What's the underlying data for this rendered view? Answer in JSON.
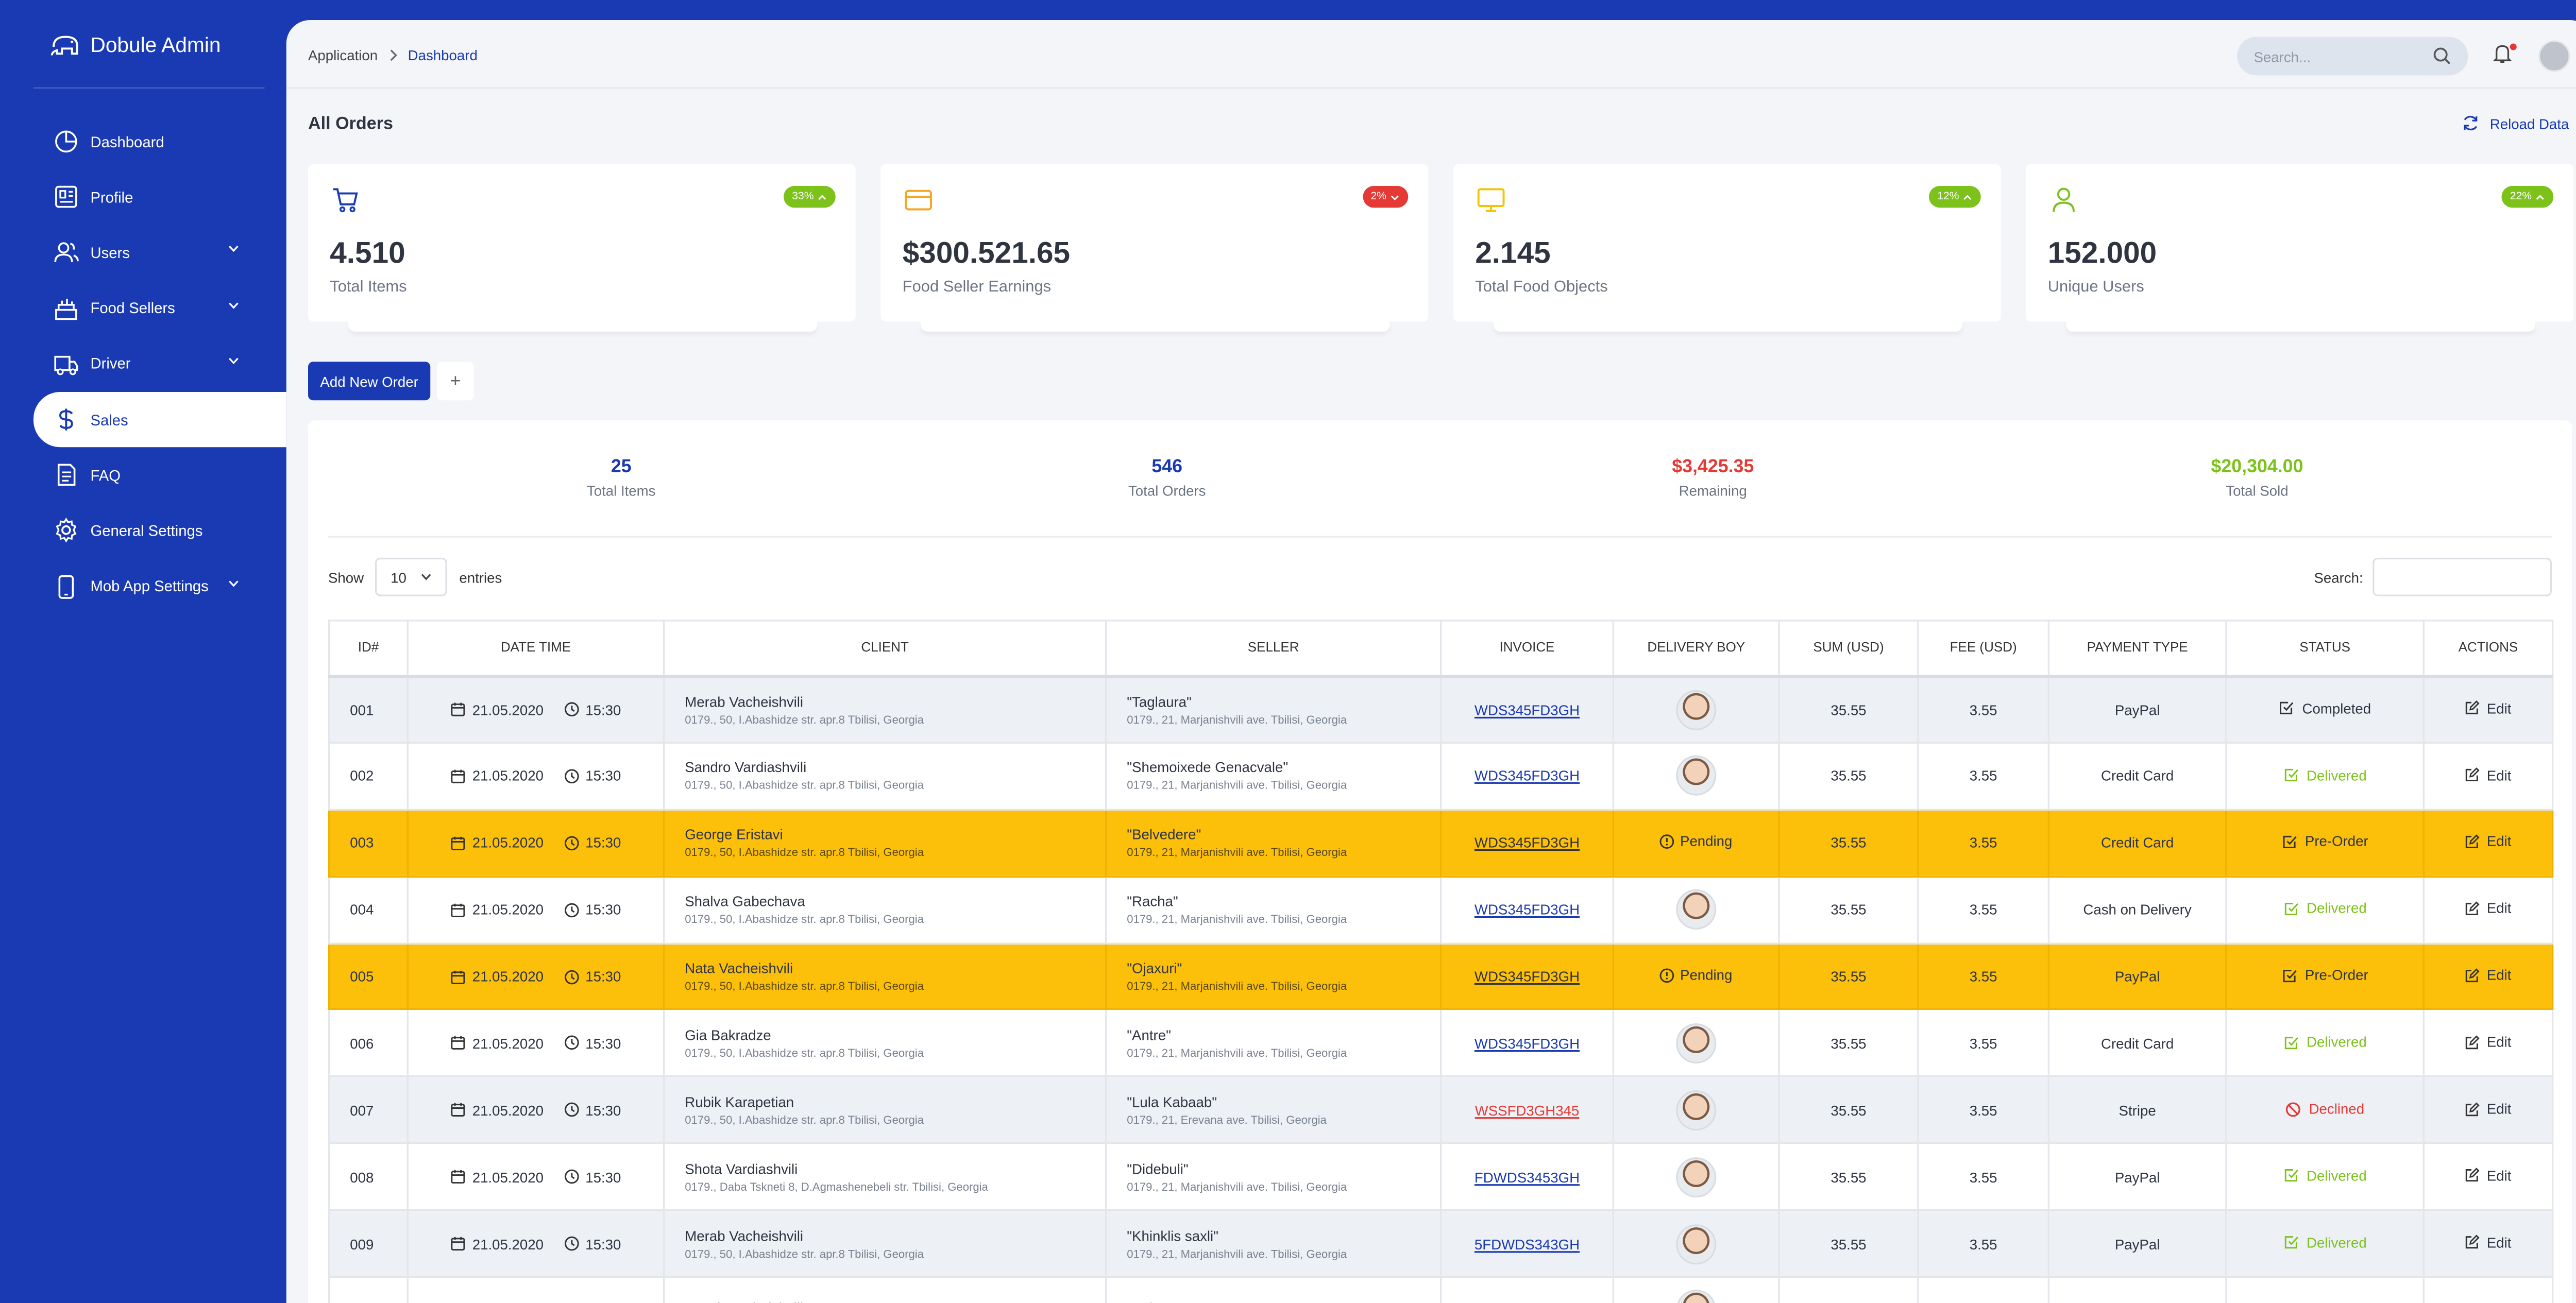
{
  "brand": {
    "name": "Dobule Admin"
  },
  "sidebar": {
    "items": [
      {
        "label": "Dashboard",
        "icon": "pie-chart-icon"
      },
      {
        "label": "Profile",
        "icon": "id-card-icon"
      },
      {
        "label": "Users",
        "icon": "users-icon"
      },
      {
        "label": "Food Sellers",
        "icon": "food-seller-icon"
      },
      {
        "label": "Driver",
        "icon": "truck-icon"
      },
      {
        "label": "Sales",
        "icon": "dollar-icon"
      },
      {
        "label": "FAQ",
        "icon": "document-icon"
      },
      {
        "label": "General Settings",
        "icon": "gear-icon"
      },
      {
        "label": "Mob App Settings",
        "icon": "mobile-icon"
      }
    ]
  },
  "header": {
    "breadcrumb": {
      "root": "Application",
      "current": "Dashboard"
    },
    "search_placeholder": "Search..."
  },
  "page": {
    "title": "All Orders",
    "reload_label": "Reload Data"
  },
  "cards": [
    {
      "value": "4.510",
      "label": "Total Items",
      "badge": "33%",
      "badge_color": "#7cc21a",
      "icon_color": "#1a3ab3",
      "trend": "up"
    },
    {
      "value": "$300.521.65",
      "label": "Food Seller Earnings",
      "badge": "2%",
      "badge_color": "#e53935",
      "icon_color": "#f5a623",
      "trend": "down"
    },
    {
      "value": "2.145",
      "label": "Total Food Objects",
      "badge": "12%",
      "badge_color": "#7cc21a",
      "icon_color": "#f5c400",
      "trend": "up"
    },
    {
      "value": "152.000",
      "label": "Unique Users",
      "badge": "22%",
      "badge_color": "#7cc21a",
      "icon_color": "#7cc21a",
      "trend": "up"
    }
  ],
  "actions": {
    "add_order": "Add New Order",
    "plus": "+"
  },
  "stats": [
    {
      "value": "25",
      "label": "Total Items",
      "color": "#1a3ab3"
    },
    {
      "value": "546",
      "label": "Total Orders",
      "color": "#1a3ab3"
    },
    {
      "value": "$3,425.35",
      "label": "Remaining",
      "color": "#e53935"
    },
    {
      "value": "$20,304.00",
      "label": "Total Sold",
      "color": "#7cc21a"
    }
  ],
  "table_controls": {
    "show": "Show",
    "entries_value": "10",
    "entries": "entries",
    "search_label": "Search:"
  },
  "table": {
    "columns": [
      "ID#",
      "DATE TIME",
      "CLIENT",
      "SELLER",
      "INVOICE",
      "DELIVERY BOY",
      "SUM (USD)",
      "FEE (USD)",
      "PAYMENT TYPE",
      "STATUS",
      "ACTIONS"
    ],
    "rows": [
      {
        "id": "001",
        "date": "21.05.2020",
        "time": "15:30",
        "client": "Merab Vacheishvili",
        "client_addr": "0179., 50, I.Abashidze str. apr.8 Tbilisi, Georgia",
        "seller": "\"Taglaura\"",
        "seller_addr": "0179., 21, Marjanishvili ave. Tbilisi, Georgia",
        "invoice": "WDS345FD3GH",
        "delivery": "avatar",
        "sum": "35.55",
        "fee": "3.55",
        "payment": "PayPal",
        "status": "Completed",
        "status_type": "completed",
        "action": "Edit"
      },
      {
        "id": "002",
        "date": "21.05.2020",
        "time": "15:30",
        "client": "Sandro Vardiashvili",
        "client_addr": "0179., 50, I.Abashidze str. apr.8 Tbilisi, Georgia",
        "seller": "\"Shemoixede Genacvale\"",
        "seller_addr": "0179., 21, Marjanishvili ave. Tbilisi, Georgia",
        "invoice": "WDS345FD3GH",
        "delivery": "avatar",
        "sum": "35.55",
        "fee": "3.55",
        "payment": "Credit Card",
        "status": "Delivered",
        "status_type": "delivered",
        "action": "Edit"
      },
      {
        "id": "003",
        "date": "21.05.2020",
        "time": "15:30",
        "client": "George Eristavi",
        "client_addr": "0179., 50, I.Abashidze str. apr.8 Tbilisi, Georgia",
        "seller": "\"Belvedere\"",
        "seller_addr": "0179., 21, Marjanishvili ave. Tbilisi, Georgia",
        "invoice": "WDS345FD3GH",
        "delivery": "Pending",
        "sum": "35.55",
        "fee": "3.55",
        "payment": "Credit Card",
        "status": "Pre-Order",
        "status_type": "preorder",
        "action": "Edit"
      },
      {
        "id": "004",
        "date": "21.05.2020",
        "time": "15:30",
        "client": "Shalva Gabechava",
        "client_addr": "0179., 50, I.Abashidze str. apr.8 Tbilisi, Georgia",
        "seller": "\"Racha\"",
        "seller_addr": "0179., 21, Marjanishvili ave. Tbilisi, Georgia",
        "invoice": "WDS345FD3GH",
        "delivery": "avatar",
        "sum": "35.55",
        "fee": "3.55",
        "payment": "Cash on Delivery",
        "status": "Delivered",
        "status_type": "delivered",
        "action": "Edit"
      },
      {
        "id": "005",
        "date": "21.05.2020",
        "time": "15:30",
        "client": "Nata Vacheishvili",
        "client_addr": "0179., 50, I.Abashidze str. apr.8 Tbilisi, Georgia",
        "seller": "\"Ojaxuri\"",
        "seller_addr": "0179., 21, Marjanishvili ave. Tbilisi, Georgia",
        "invoice": "WDS345FD3GH",
        "delivery": "Pending",
        "sum": "35.55",
        "fee": "3.55",
        "payment": "PayPal",
        "status": "Pre-Order",
        "status_type": "preorder",
        "action": "Edit"
      },
      {
        "id": "006",
        "date": "21.05.2020",
        "time": "15:30",
        "client": "Gia Bakradze",
        "client_addr": "0179., 50, I.Abashidze str. apr.8 Tbilisi, Georgia",
        "seller": "\"Antre\"",
        "seller_addr": "0179., 21, Marjanishvili ave. Tbilisi, Georgia",
        "invoice": "WDS345FD3GH",
        "delivery": "avatar",
        "sum": "35.55",
        "fee": "3.55",
        "payment": "Credit Card",
        "status": "Delivered",
        "status_type": "delivered",
        "action": "Edit"
      },
      {
        "id": "007",
        "date": "21.05.2020",
        "time": "15:30",
        "client": "Rubik Karapetian",
        "client_addr": "0179., 50, I.Abashidze str. apr.8 Tbilisi, Georgia",
        "seller": "\"Lula Kabaab\"",
        "seller_addr": "0179., 21, Erevana ave. Tbilisi, Georgia",
        "invoice": "WSSFD3GH345",
        "delivery": "avatar",
        "sum": "35.55",
        "fee": "3.55",
        "payment": "Stripe",
        "status": "Declined",
        "status_type": "declined",
        "action": "Edit"
      },
      {
        "id": "008",
        "date": "21.05.2020",
        "time": "15:30",
        "client": "Shota Vardiashvili",
        "client_addr": "0179., Daba Tskneti 8, D.Agmashenebeli str. Tbilisi, Georgia",
        "seller": "\"Didebuli\"",
        "seller_addr": "0179., 21, Marjanishvili ave. Tbilisi, Georgia",
        "invoice": "FDWDS3453GH",
        "delivery": "avatar",
        "sum": "35.55",
        "fee": "3.55",
        "payment": "PayPal",
        "status": "Delivered",
        "status_type": "delivered",
        "action": "Edit"
      },
      {
        "id": "009",
        "date": "21.05.2020",
        "time": "15:30",
        "client": "Merab Vacheishvili",
        "client_addr": "0179., 50, I.Abashidze str. apr.8 Tbilisi, Georgia",
        "seller": "\"Khinklis saxli\"",
        "seller_addr": "0179., 21, Marjanishvili ave. Tbilisi, Georgia",
        "invoice": "5FDWDS343GH",
        "delivery": "avatar",
        "sum": "35.55",
        "fee": "3.55",
        "payment": "PayPal",
        "status": "Delivered",
        "status_type": "delivered",
        "action": "Edit"
      },
      {
        "id": "",
        "date": "",
        "time": "",
        "client": "Merab Vacheishvili",
        "client_addr": "",
        "seller": "\"Sairme\"",
        "seller_addr": "",
        "invoice": "",
        "delivery": "avatar",
        "sum": "",
        "fee": "",
        "payment": "",
        "status": "",
        "status_type": "none",
        "action": ""
      }
    ]
  }
}
